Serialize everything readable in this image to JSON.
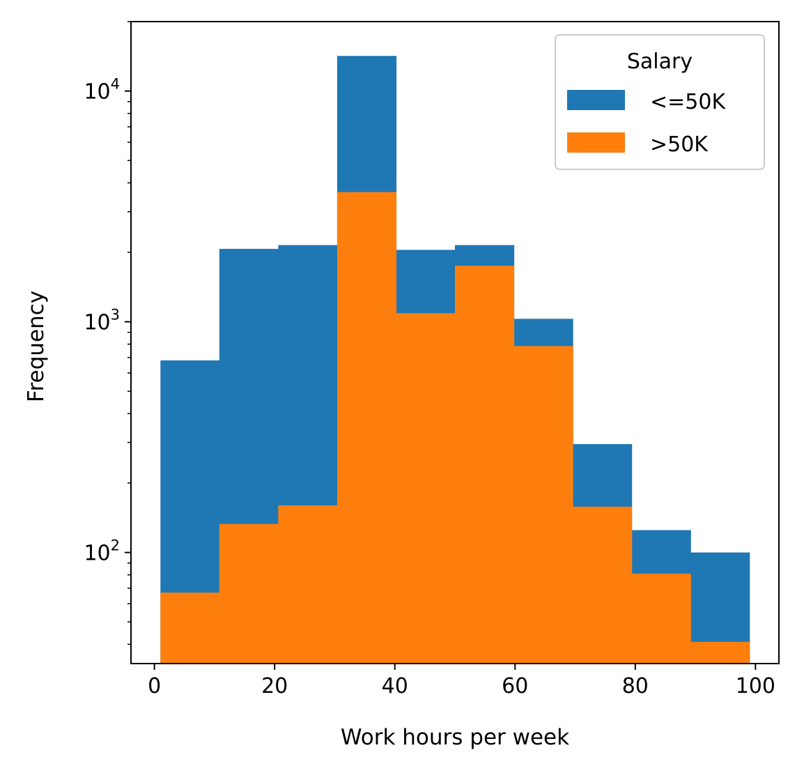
{
  "chart_data": {
    "type": "bar",
    "title": "",
    "xlabel": "Work hours per week",
    "ylabel": "Frequency",
    "yscale": "log",
    "xlim": [
      -3.9,
      103.9
    ],
    "ylim": [
      33,
      20000
    ],
    "grid": false,
    "bin_edges": [
      1,
      10.8,
      20.6,
      30.4,
      40.2,
      50,
      59.8,
      69.6,
      79.4,
      89.2,
      99
    ],
    "x_ticks": [
      0,
      20,
      40,
      60,
      80,
      100
    ],
    "y_ticks": [
      100,
      1000,
      10000
    ],
    "y_tick_labels": [
      {
        "base": "10",
        "exp": "2"
      },
      {
        "base": "10",
        "exp": "3"
      },
      {
        "base": "10",
        "exp": "4"
      }
    ],
    "series": [
      {
        "name": "<=50K",
        "color": "#1f77b4",
        "values": [
          680,
          2070,
          2150,
          14200,
          2050,
          2150,
          1030,
          295,
          125,
          100
        ]
      },
      {
        "name": ">50K",
        "color": "#ff7f0e",
        "values": [
          67,
          133,
          160,
          3650,
          1090,
          1750,
          785,
          158,
          81,
          41
        ]
      }
    ],
    "legend": {
      "title": "Salary",
      "position": "top-right"
    }
  }
}
